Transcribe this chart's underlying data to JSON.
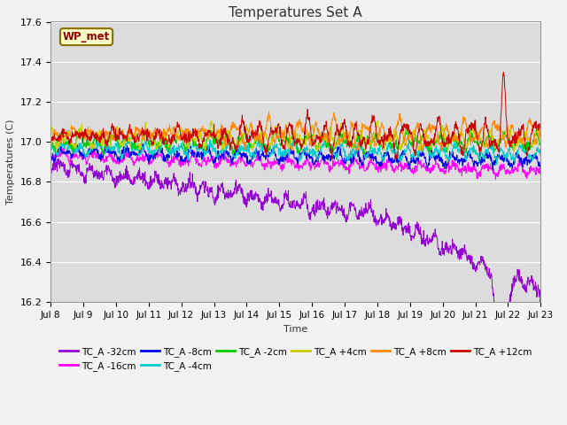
{
  "title": "Temperatures Set A",
  "xlabel": "Time",
  "ylabel": "Temperatures (C)",
  "ylim": [
    16.2,
    17.6
  ],
  "x_tick_labels": [
    "Jul 8",
    "Jul 9",
    "Jul 10",
    "Jul 11",
    "Jul 12",
    "Jul 13",
    "Jul 14",
    "Jul 15",
    "Jul 16",
    "Jul 17",
    "Jul 18",
    "Jul 19",
    "Jul 20",
    "Jul 21",
    "Jul 22",
    "Jul 23"
  ],
  "series": [
    {
      "label": "TC_A -32cm",
      "color": "#9400D3"
    },
    {
      "label": "TC_A -16cm",
      "color": "#FF00FF"
    },
    {
      "label": "TC_A -8cm",
      "color": "#0000EE"
    },
    {
      "label": "TC_A -4cm",
      "color": "#00CCCC"
    },
    {
      "label": "TC_A -2cm",
      "color": "#00CC00"
    },
    {
      "label": "TC_A +4cm",
      "color": "#CCCC00"
    },
    {
      "label": "TC_A +8cm",
      "color": "#FF8800"
    },
    {
      "label": "TC_A +12cm",
      "color": "#CC0000"
    }
  ],
  "annotation_label": "WP_met",
  "bg_color": "#DCDCDC",
  "fig_color": "#F2F2F2",
  "grid_color": "#FFFFFF",
  "n_points": 1500,
  "n_days": 15
}
